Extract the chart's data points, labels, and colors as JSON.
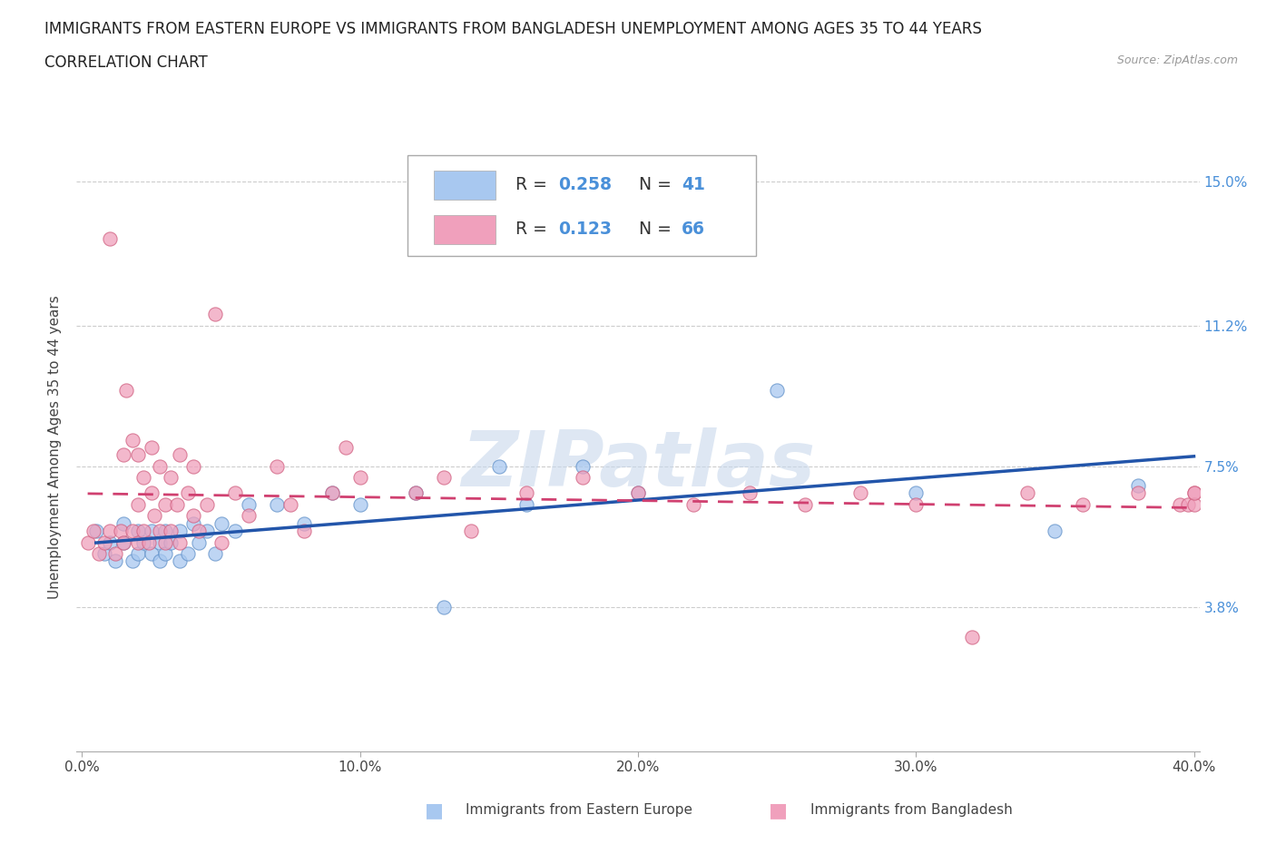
{
  "title_line1": "IMMIGRANTS FROM EASTERN EUROPE VS IMMIGRANTS FROM BANGLADESH UNEMPLOYMENT AMONG AGES 35 TO 44 YEARS",
  "title_line2": "CORRELATION CHART",
  "source": "Source: ZipAtlas.com",
  "ylabel": "Unemployment Among Ages 35 to 44 years",
  "xlim": [
    -0.002,
    0.402
  ],
  "ylim": [
    0.0,
    0.16
  ],
  "ytick_vals": [
    0.038,
    0.075,
    0.112,
    0.15
  ],
  "ytick_labels": [
    "3.8%",
    "7.5%",
    "11.2%",
    "15.0%"
  ],
  "xtick_vals": [
    0.0,
    0.1,
    0.2,
    0.3,
    0.4
  ],
  "xtick_labels": [
    "0.0%",
    "10.0%",
    "20.0%",
    "30.0%",
    "40.0%"
  ],
  "series1_label": "Immigrants from Eastern Europe",
  "series1_color": "#a8c8f0",
  "series1_edge_color": "#6090c8",
  "series1_line_color": "#2255aa",
  "series1_R": 0.258,
  "series1_N": 41,
  "series2_label": "Immigrants from Bangladesh",
  "series2_color": "#f0a0bc",
  "series2_edge_color": "#d06080",
  "series2_line_color": "#d04070",
  "series2_R": 0.123,
  "series2_N": 66,
  "watermark_text": "ZIPatlas",
  "watermark_color": "#c8d8ec",
  "title_fontsize": 12,
  "label_fontsize": 11,
  "tick_fontsize": 11,
  "source_fontsize": 9,
  "background_color": "#ffffff",
  "grid_color": "#cccccc",
  "series1_x": [
    0.005,
    0.008,
    0.01,
    0.012,
    0.015,
    0.015,
    0.018,
    0.02,
    0.02,
    0.022,
    0.025,
    0.025,
    0.028,
    0.028,
    0.03,
    0.03,
    0.032,
    0.035,
    0.035,
    0.038,
    0.04,
    0.042,
    0.045,
    0.048,
    0.05,
    0.055,
    0.06,
    0.07,
    0.08,
    0.09,
    0.1,
    0.12,
    0.13,
    0.15,
    0.16,
    0.18,
    0.2,
    0.25,
    0.3,
    0.35,
    0.38
  ],
  "series1_y": [
    0.058,
    0.052,
    0.055,
    0.05,
    0.06,
    0.055,
    0.05,
    0.058,
    0.052,
    0.055,
    0.052,
    0.058,
    0.055,
    0.05,
    0.058,
    0.052,
    0.055,
    0.05,
    0.058,
    0.052,
    0.06,
    0.055,
    0.058,
    0.052,
    0.06,
    0.058,
    0.065,
    0.065,
    0.06,
    0.068,
    0.065,
    0.068,
    0.038,
    0.075,
    0.065,
    0.075,
    0.068,
    0.095,
    0.068,
    0.058,
    0.07
  ],
  "series2_x": [
    0.002,
    0.004,
    0.006,
    0.008,
    0.01,
    0.01,
    0.012,
    0.014,
    0.015,
    0.015,
    0.016,
    0.018,
    0.018,
    0.02,
    0.02,
    0.02,
    0.022,
    0.022,
    0.024,
    0.025,
    0.025,
    0.026,
    0.028,
    0.028,
    0.03,
    0.03,
    0.032,
    0.032,
    0.034,
    0.035,
    0.035,
    0.038,
    0.04,
    0.04,
    0.042,
    0.045,
    0.048,
    0.05,
    0.055,
    0.06,
    0.07,
    0.075,
    0.08,
    0.09,
    0.095,
    0.1,
    0.12,
    0.13,
    0.14,
    0.16,
    0.18,
    0.2,
    0.22,
    0.24,
    0.26,
    0.28,
    0.3,
    0.32,
    0.34,
    0.36,
    0.38,
    0.395,
    0.398,
    0.4,
    0.4,
    0.4
  ],
  "series2_y": [
    0.055,
    0.058,
    0.052,
    0.055,
    0.058,
    0.135,
    0.052,
    0.058,
    0.078,
    0.055,
    0.095,
    0.058,
    0.082,
    0.055,
    0.065,
    0.078,
    0.058,
    0.072,
    0.055,
    0.08,
    0.068,
    0.062,
    0.075,
    0.058,
    0.065,
    0.055,
    0.072,
    0.058,
    0.065,
    0.078,
    0.055,
    0.068,
    0.062,
    0.075,
    0.058,
    0.065,
    0.115,
    0.055,
    0.068,
    0.062,
    0.075,
    0.065,
    0.058,
    0.068,
    0.08,
    0.072,
    0.068,
    0.072,
    0.058,
    0.068,
    0.072,
    0.068,
    0.065,
    0.068,
    0.065,
    0.068,
    0.065,
    0.03,
    0.068,
    0.065,
    0.068,
    0.065,
    0.065,
    0.068,
    0.065,
    0.068
  ]
}
